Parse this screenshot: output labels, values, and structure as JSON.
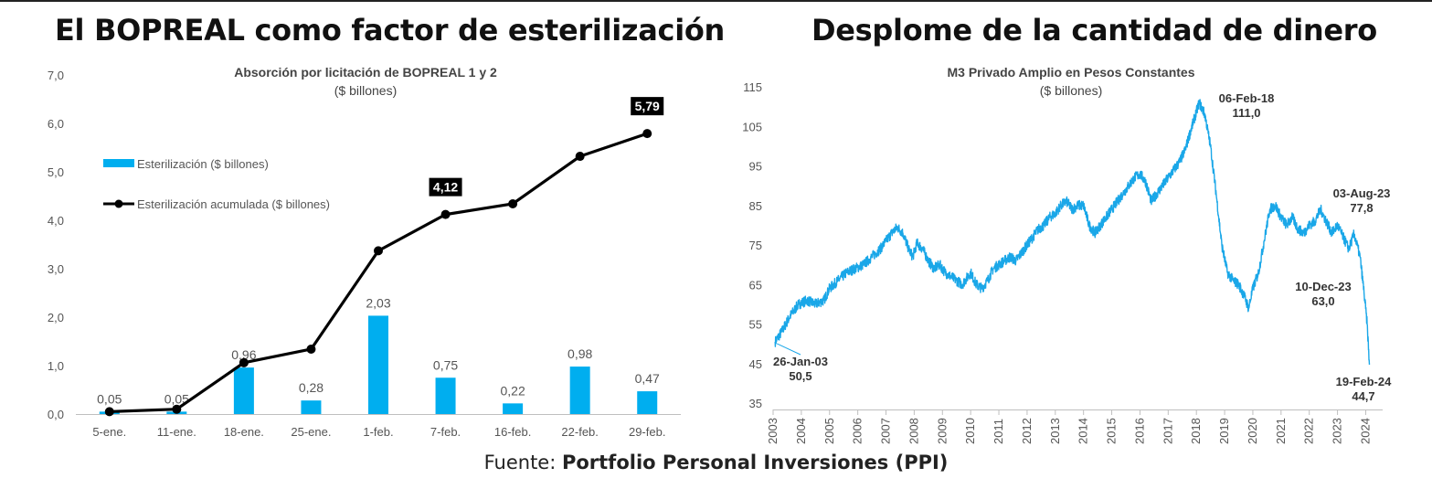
{
  "headlines": {
    "left": "El BOPREAL como factor de esterilización",
    "right": "Desplome de la cantidad de dinero"
  },
  "source": {
    "prefix": "Fuente: ",
    "name": "Portfolio Personal Inversiones (PPI)"
  },
  "chart_data": [
    {
      "type": "bar",
      "title": "Absorción por licitación de BOPREAL 1 y 2",
      "subtitle": "($ billones)",
      "categories": [
        "5-ene.",
        "11-ene.",
        "18-ene.",
        "25-ene.",
        "1-feb.",
        "7-feb.",
        "16-feb.",
        "22-feb.",
        "29-feb."
      ],
      "series": [
        {
          "name": "Esterilización ($ billones)",
          "type": "bar",
          "color": "#00AEEF",
          "values": [
            0.05,
            0.05,
            0.96,
            0.28,
            2.03,
            0.75,
            0.22,
            0.98,
            0.47
          ],
          "labels": [
            "0,05",
            "0,05",
            "0,96",
            "0,28",
            "2,03",
            "0,75",
            "0,22",
            "0,98",
            "0,47"
          ]
        },
        {
          "name": "Esterilización acumulada ($ billones)",
          "type": "line",
          "color": "#000000",
          "values": [
            0.05,
            0.1,
            1.06,
            1.34,
            3.37,
            4.12,
            4.34,
            5.32,
            5.79
          ],
          "labels": [
            "",
            "",
            "",
            "",
            "",
            "4,12",
            "",
            "",
            "5,79"
          ]
        }
      ],
      "ylim": [
        0,
        7
      ],
      "yticks": [
        "0,0",
        "1,0",
        "2,0",
        "3,0",
        "4,0",
        "5,0",
        "6,0",
        "7,0"
      ],
      "grid": false,
      "legend": "top-left"
    },
    {
      "type": "line",
      "title": "M3 Privado Amplio en Pesos Constantes",
      "subtitle": "($ billones)",
      "series": [
        {
          "name": "M3 Privado Amplio",
          "color": "#1AA7E8",
          "points": [
            [
              2003.07,
              50.5
            ],
            [
              2003.3,
              53
            ],
            [
              2003.6,
              57
            ],
            [
              2003.9,
              60
            ],
            [
              2004.2,
              61
            ],
            [
              2004.5,
              60
            ],
            [
              2004.8,
              61
            ],
            [
              2005.0,
              64
            ],
            [
              2005.3,
              66
            ],
            [
              2005.6,
              68
            ],
            [
              2005.9,
              69
            ],
            [
              2006.2,
              70
            ],
            [
              2006.5,
              72
            ],
            [
              2006.8,
              74
            ],
            [
              2007.0,
              76
            ],
            [
              2007.2,
              78
            ],
            [
              2007.4,
              79.5
            ],
            [
              2007.6,
              78
            ],
            [
              2007.8,
              74
            ],
            [
              2007.95,
              72
            ],
            [
              2008.1,
              75.5
            ],
            [
              2008.3,
              74
            ],
            [
              2008.5,
              71
            ],
            [
              2008.7,
              69
            ],
            [
              2008.9,
              70
            ],
            [
              2009.1,
              68
            ],
            [
              2009.3,
              67
            ],
            [
              2009.5,
              66
            ],
            [
              2009.7,
              65
            ],
            [
              2009.9,
              67
            ],
            [
              2010.0,
              68
            ],
            [
              2010.2,
              65
            ],
            [
              2010.4,
              64
            ],
            [
              2010.6,
              66
            ],
            [
              2010.8,
              69
            ],
            [
              2011.0,
              70
            ],
            [
              2011.2,
              71
            ],
            [
              2011.4,
              72
            ],
            [
              2011.6,
              71
            ],
            [
              2011.8,
              73
            ],
            [
              2012.0,
              75
            ],
            [
              2012.2,
              77
            ],
            [
              2012.4,
              79
            ],
            [
              2012.6,
              80
            ],
            [
              2012.8,
              82
            ],
            [
              2013.0,
              83
            ],
            [
              2013.2,
              85
            ],
            [
              2013.4,
              86
            ],
            [
              2013.6,
              84
            ],
            [
              2013.8,
              85
            ],
            [
              2014.0,
              85
            ],
            [
              2014.2,
              80
            ],
            [
              2014.4,
              78
            ],
            [
              2014.6,
              80
            ],
            [
              2014.8,
              82
            ],
            [
              2015.0,
              84
            ],
            [
              2015.2,
              86
            ],
            [
              2015.4,
              88
            ],
            [
              2015.6,
              90
            ],
            [
              2015.8,
              92
            ],
            [
              2016.0,
              93
            ],
            [
              2016.2,
              91
            ],
            [
              2016.4,
              86
            ],
            [
              2016.6,
              88
            ],
            [
              2016.8,
              90
            ],
            [
              2017.0,
              92
            ],
            [
              2017.2,
              94
            ],
            [
              2017.4,
              96
            ],
            [
              2017.6,
              99
            ],
            [
              2017.8,
              104
            ],
            [
              2018.1,
              111.0
            ],
            [
              2018.3,
              108
            ],
            [
              2018.5,
              100
            ],
            [
              2018.7,
              88
            ],
            [
              2018.9,
              75
            ],
            [
              2019.1,
              68
            ],
            [
              2019.3,
              66
            ],
            [
              2019.5,
              65
            ],
            [
              2019.7,
              62
            ],
            [
              2019.85,
              59
            ],
            [
              2020.0,
              64
            ],
            [
              2020.2,
              68
            ],
            [
              2020.4,
              76
            ],
            [
              2020.6,
              84
            ],
            [
              2020.8,
              85
            ],
            [
              2021.0,
              82
            ],
            [
              2021.2,
              80
            ],
            [
              2021.4,
              82
            ],
            [
              2021.6,
              79
            ],
            [
              2021.8,
              78
            ],
            [
              2022.0,
              80
            ],
            [
              2022.2,
              81
            ],
            [
              2022.4,
              84
            ],
            [
              2022.6,
              81
            ],
            [
              2022.8,
              78
            ],
            [
              2023.0,
              80
            ],
            [
              2023.2,
              77
            ],
            [
              2023.4,
              74
            ],
            [
              2023.59,
              77.8
            ],
            [
              2023.8,
              72
            ],
            [
              2023.94,
              63.0
            ],
            [
              2024.05,
              55
            ],
            [
              2024.13,
              44.7
            ]
          ]
        }
      ],
      "xlim": [
        2003,
        2024.6
      ],
      "ylim": [
        35,
        115
      ],
      "yticks": [
        "35",
        "45",
        "55",
        "65",
        "75",
        "85",
        "95",
        "105",
        "115"
      ],
      "xticks": [
        "2003",
        "2004",
        "2005",
        "2006",
        "2007",
        "2008",
        "2009",
        "2010",
        "2011",
        "2012",
        "2013",
        "2014",
        "2015",
        "2016",
        "2017",
        "2018",
        "2019",
        "2020",
        "2021",
        "2022",
        "2023",
        "2024"
      ],
      "grid": false,
      "annotations": [
        {
          "date": "26-Jan-03",
          "value": "50,5",
          "x": 2003.07,
          "y": 50.5
        },
        {
          "date": "06-Feb-18",
          "value": "111,0",
          "x": 2018.1,
          "y": 111.0
        },
        {
          "date": "03-Aug-23",
          "value": "77,8",
          "x": 2023.59,
          "y": 77.8
        },
        {
          "date": "10-Dec-23",
          "value": "63,0",
          "x": 2023.94,
          "y": 63.0
        },
        {
          "date": "19-Feb-24",
          "value": "44,7",
          "x": 2024.13,
          "y": 44.7
        }
      ]
    }
  ]
}
